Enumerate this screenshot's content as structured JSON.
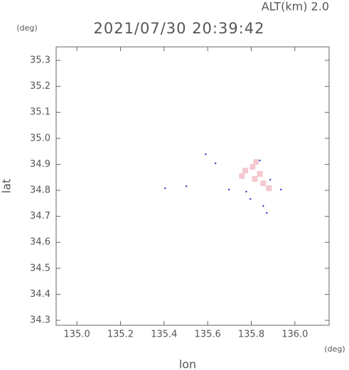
{
  "chart_data": {
    "type": "scatter",
    "title": "2021/07/30 20:39:42",
    "subtitle": "ALT(km) 2.0",
    "x_label": "lon",
    "y_label": "lat",
    "x_unit": "(deg)",
    "y_unit": "(deg)",
    "xlim": [
      134.905,
      136.157
    ],
    "ylim": [
      34.281,
      35.352
    ],
    "xticks": [
      {
        "value": 135.0,
        "label": "135.0"
      },
      135.2,
      135.4,
      135.6,
      135.8,
      {
        "value": 136.0,
        "label": "136.0"
      }
    ],
    "yticks": [
      34.3,
      34.4,
      34.5,
      34.6,
      34.7,
      34.8,
      34.9,
      {
        "value": 35.0,
        "label": "35.0"
      },
      35.1,
      35.2,
      35.3
    ],
    "series": [
      {
        "color": "#f4c8d0",
        "marker": "square",
        "x": [
          135.773,
          135.806,
          135.822,
          135.839,
          135.855,
          135.881,
          135.757,
          135.816
        ],
        "values": [
          34.876,
          34.89,
          34.909,
          34.863,
          34.827,
          34.808,
          34.855,
          34.844
        ]
      },
      {
        "color": "#3333cc",
        "marker": "dot",
        "x": [
          135.405,
          135.502,
          135.636,
          135.698,
          135.777,
          135.855,
          135.871,
          135.839,
          135.887,
          135.936,
          135.591,
          135.796
        ],
        "values": [
          34.808,
          34.816,
          34.904,
          34.803,
          34.795,
          34.74,
          34.713,
          34.915,
          34.841,
          34.803,
          34.939,
          34.767
        ]
      }
    ]
  }
}
